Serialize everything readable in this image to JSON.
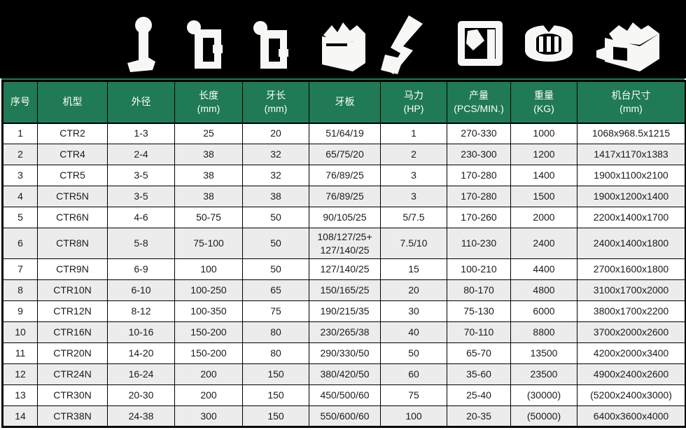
{
  "banner": {
    "background": "#000000",
    "icons": [
      "anchor-bolt-icon",
      "die-frame-icon",
      "die-frame-alt-icon",
      "machine-body-icon",
      "thread-rolling-dies-icon",
      "die-plate-icon",
      "round-die-icon",
      "machine-block-icon"
    ]
  },
  "table": {
    "header_bg": "#1f7a55",
    "header_text_color": "#ffffff",
    "alt_row_bg": "#ececec",
    "headers": [
      "序号",
      "机型",
      "外径",
      "长度\n(mm)",
      "牙长\n(mm)",
      "牙板",
      "马力\n(HP)",
      "产量\n(PCS/MIN.)",
      "重量\n(KG)",
      "机台尺寸\n(mm)"
    ],
    "rows": [
      [
        "1",
        "CTR2",
        "1-3",
        "25",
        "20",
        "51/64/19",
        "1",
        "270-330",
        "1000",
        "1068x968.5x1215"
      ],
      [
        "2",
        "CTR4",
        "2-4",
        "38",
        "32",
        "65/75/20",
        "2",
        "230-300",
        "1200",
        "1417x1170x1383"
      ],
      [
        "3",
        "CTR5",
        "3-5",
        "38",
        "32",
        "76/89/25",
        "3",
        "170-280",
        "1400",
        "1900x1100x2100"
      ],
      [
        "4",
        "CTR5N",
        "3-5",
        "38",
        "38",
        "76/89/25",
        "3",
        "170-280",
        "1500",
        "1900x1200x1400"
      ],
      [
        "5",
        "CTR6N",
        "4-6",
        "50-75",
        "50",
        "90/105/25",
        "5/7.5",
        "170-260",
        "2000",
        "2200x1400x1700"
      ],
      [
        "6",
        "CTR8N",
        "5-8",
        "75-100",
        "50",
        "108/127/25+\n127/140/25",
        "7.5/10",
        "110-230",
        "2400",
        "2400x1400x1800"
      ],
      [
        "7",
        "CTR9N",
        "6-9",
        "100",
        "50",
        "127/140/25",
        "15",
        "100-210",
        "4400",
        "2700x1600x1800"
      ],
      [
        "8",
        "CTR10N",
        "6-10",
        "100-250",
        "65",
        "150/165/25",
        "20",
        "80-170",
        "4800",
        "3100x1700x2000"
      ],
      [
        "9",
        "CTR12N",
        "8-12",
        "100-350",
        "75",
        "190/215/35",
        "30",
        "75-130",
        "6000",
        "3800x1700x2200"
      ],
      [
        "10",
        "CTR16N",
        "10-16",
        "150-200",
        "80",
        "230/265/38",
        "40",
        "70-110",
        "8800",
        "3700x2000x2600"
      ],
      [
        "11",
        "CTR20N",
        "14-20",
        "150-200",
        "80",
        "290/330/50",
        "50",
        "65-70",
        "13500",
        "4200x2000x3400"
      ],
      [
        "12",
        "CTR24N",
        "16-24",
        "200",
        "150",
        "380/420/50",
        "60",
        "35-60",
        "23500",
        "4900x2400x2600"
      ],
      [
        "13",
        "CTR30N",
        "20-30",
        "200",
        "150",
        "450/500/60",
        "75",
        "25-40",
        "(30000)",
        "(5200x2400x3000)"
      ],
      [
        "14",
        "CTR38N",
        "24-38",
        "300",
        "150",
        "550/600/60",
        "100",
        "20-35",
        "(50000)",
        "6400x3600x4000"
      ]
    ]
  }
}
